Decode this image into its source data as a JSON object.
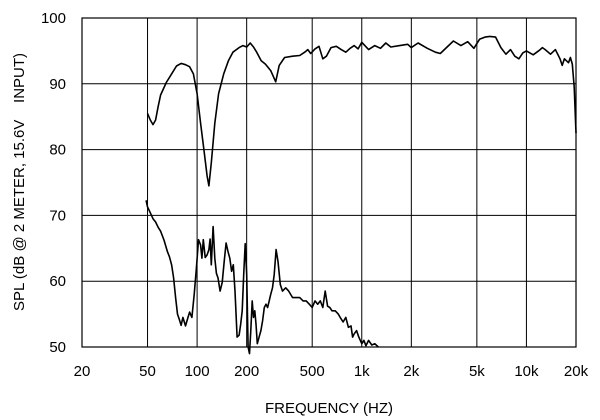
{
  "chart_data": {
    "type": "line",
    "xscale": "log",
    "xlim": [
      20,
      20000
    ],
    "ylim": [
      50,
      100
    ],
    "grid": true,
    "xlabel": "FREQUENCY (HZ)",
    "ylabel": "SPL (dB @ 2 METER, 15.6V    INPUT)",
    "x_ticks": [
      {
        "value": 20,
        "label": "20"
      },
      {
        "value": 50,
        "label": "50"
      },
      {
        "value": 100,
        "label": "100"
      },
      {
        "value": 200,
        "label": "200"
      },
      {
        "value": 500,
        "label": "500"
      },
      {
        "value": 1000,
        "label": "1k"
      },
      {
        "value": 2000,
        "label": "2k"
      },
      {
        "value": 5000,
        "label": "5k"
      },
      {
        "value": 10000,
        "label": "10k"
      },
      {
        "value": 20000,
        "label": "20k"
      }
    ],
    "x_gridlines": [
      20,
      50,
      100,
      200,
      500,
      1000,
      2000,
      5000,
      10000,
      20000
    ],
    "y_ticks": [
      {
        "value": 50,
        "label": "50"
      },
      {
        "value": 60,
        "label": "60"
      },
      {
        "value": 70,
        "label": "70"
      },
      {
        "value": 80,
        "label": "80"
      },
      {
        "value": 90,
        "label": "90"
      },
      {
        "value": 100,
        "label": "100"
      }
    ],
    "series": [
      {
        "points": [
          [
            50,
            85.5
          ],
          [
            52,
            84.5
          ],
          [
            54,
            83.8
          ],
          [
            56,
            84.5
          ],
          [
            58,
            86.5
          ],
          [
            60,
            88.3
          ],
          [
            65,
            90.2
          ],
          [
            70,
            91.5
          ],
          [
            75,
            92.7
          ],
          [
            80,
            93.1
          ],
          [
            85,
            92.9
          ],
          [
            90,
            92.6
          ],
          [
            95,
            91.5
          ],
          [
            100,
            88.5
          ],
          [
            105,
            84
          ],
          [
            110,
            80
          ],
          [
            115,
            76
          ],
          [
            118,
            74.5
          ],
          [
            122,
            78
          ],
          [
            128,
            84
          ],
          [
            135,
            88.5
          ],
          [
            145,
            91.5
          ],
          [
            155,
            93.5
          ],
          [
            165,
            94.8
          ],
          [
            180,
            95.5
          ],
          [
            190,
            95.8
          ],
          [
            200,
            95.6
          ],
          [
            210,
            96.2
          ],
          [
            220,
            95.6
          ],
          [
            230,
            94.8
          ],
          [
            245,
            93.5
          ],
          [
            260,
            93
          ],
          [
            280,
            92
          ],
          [
            300,
            90.3
          ],
          [
            315,
            92.8
          ],
          [
            340,
            94
          ],
          [
            380,
            94.2
          ],
          [
            420,
            94.3
          ],
          [
            450,
            94.8
          ],
          [
            470,
            95.2
          ],
          [
            490,
            94.6
          ],
          [
            520,
            95.3
          ],
          [
            550,
            95.7
          ],
          [
            580,
            93.8
          ],
          [
            610,
            94.2
          ],
          [
            650,
            95.5
          ],
          [
            700,
            95.7
          ],
          [
            750,
            95.2
          ],
          [
            800,
            94.8
          ],
          [
            850,
            95.4
          ],
          [
            900,
            95.8
          ],
          [
            950,
            95.3
          ],
          [
            1000,
            96.3
          ],
          [
            1100,
            95.2
          ],
          [
            1200,
            95.8
          ],
          [
            1300,
            95.4
          ],
          [
            1400,
            96.2
          ],
          [
            1500,
            95.6
          ],
          [
            1700,
            95.8
          ],
          [
            1900,
            96
          ],
          [
            2000,
            95.5
          ],
          [
            2200,
            96.2
          ],
          [
            2500,
            95.4
          ],
          [
            2800,
            94.8
          ],
          [
            3000,
            94.6
          ],
          [
            3300,
            95.6
          ],
          [
            3600,
            96.5
          ],
          [
            4000,
            95.8
          ],
          [
            4400,
            96.4
          ],
          [
            4800,
            95.4
          ],
          [
            5200,
            96.8
          ],
          [
            5600,
            97.1
          ],
          [
            6000,
            97.2
          ],
          [
            6500,
            97.1
          ],
          [
            7000,
            95.5
          ],
          [
            7500,
            94.5
          ],
          [
            8000,
            95.2
          ],
          [
            8500,
            94.2
          ],
          [
            9000,
            93.8
          ],
          [
            9500,
            94.7
          ],
          [
            10000,
            95
          ],
          [
            11000,
            94.4
          ],
          [
            12000,
            95.1
          ],
          [
            12500,
            95.5
          ],
          [
            13000,
            95.2
          ],
          [
            14000,
            94.5
          ],
          [
            15000,
            95.2
          ],
          [
            16000,
            93.8
          ],
          [
            16500,
            92.8
          ],
          [
            17000,
            93.8
          ],
          [
            18000,
            93.2
          ],
          [
            18500,
            94
          ],
          [
            19000,
            93
          ],
          [
            19500,
            89.5
          ],
          [
            20000,
            82.5
          ]
        ]
      },
      {
        "points": [
          [
            49,
            72.3
          ],
          [
            50,
            71.3
          ],
          [
            52,
            70.4
          ],
          [
            54,
            69.5
          ],
          [
            56,
            69
          ],
          [
            58,
            68.2
          ],
          [
            60,
            67.6
          ],
          [
            63,
            66.2
          ],
          [
            66,
            64.5
          ],
          [
            68,
            63.7
          ],
          [
            70,
            62.5
          ],
          [
            72,
            60.5
          ],
          [
            74,
            57.5
          ],
          [
            76,
            55
          ],
          [
            78,
            54.2
          ],
          [
            80,
            53.3
          ],
          [
            82,
            54.5
          ],
          [
            85,
            53.2
          ],
          [
            88,
            54.5
          ],
          [
            90,
            55.3
          ],
          [
            93,
            54.5
          ],
          [
            96,
            58
          ],
          [
            99,
            62
          ],
          [
            102,
            66.3
          ],
          [
            105,
            65.5
          ],
          [
            107,
            63.5
          ],
          [
            109,
            66.3
          ],
          [
            112,
            63.6
          ],
          [
            115,
            64
          ],
          [
            118,
            64.8
          ],
          [
            120,
            66.4
          ],
          [
            122,
            62.5
          ],
          [
            125,
            68.3
          ],
          [
            128,
            63.5
          ],
          [
            131,
            61.2
          ],
          [
            134,
            60.5
          ],
          [
            138,
            58.5
          ],
          [
            142,
            59.8
          ],
          [
            146,
            63
          ],
          [
            150,
            65.8
          ],
          [
            154,
            64.5
          ],
          [
            158,
            63.5
          ],
          [
            162,
            61.5
          ],
          [
            166,
            62.5
          ],
          [
            170,
            58.5
          ],
          [
            175,
            51.5
          ],
          [
            180,
            51.8
          ],
          [
            184,
            53.5
          ],
          [
            188,
            55.5
          ],
          [
            192,
            61
          ],
          [
            196,
            65.7
          ],
          [
            200,
            61
          ],
          [
            204,
            50
          ],
          [
            208,
            49
          ],
          [
            212,
            52.5
          ],
          [
            216,
            57
          ],
          [
            220,
            54.5
          ],
          [
            224,
            55.5
          ],
          [
            228,
            53.5
          ],
          [
            232,
            50.5
          ],
          [
            238,
            51.5
          ],
          [
            244,
            52.5
          ],
          [
            250,
            54
          ],
          [
            256,
            56
          ],
          [
            262,
            56.5
          ],
          [
            268,
            56
          ],
          [
            274,
            57
          ],
          [
            280,
            58
          ],
          [
            287,
            59
          ],
          [
            294,
            61
          ],
          [
            302,
            64.8
          ],
          [
            310,
            63
          ],
          [
            320,
            59.5
          ],
          [
            330,
            58.5
          ],
          [
            345,
            59
          ],
          [
            360,
            58.5
          ],
          [
            380,
            57.5
          ],
          [
            400,
            57.5
          ],
          [
            420,
            57.5
          ],
          [
            440,
            57
          ],
          [
            460,
            57
          ],
          [
            480,
            56.5
          ],
          [
            500,
            56
          ],
          [
            520,
            57
          ],
          [
            540,
            56.5
          ],
          [
            560,
            57
          ],
          [
            580,
            56
          ],
          [
            600,
            58.5
          ],
          [
            620,
            56.2
          ],
          [
            640,
            56
          ],
          [
            660,
            55.5
          ],
          [
            690,
            55.5
          ],
          [
            720,
            55
          ],
          [
            740,
            54.5
          ],
          [
            770,
            53.8
          ],
          [
            800,
            54.5
          ],
          [
            830,
            53
          ],
          [
            860,
            53.2
          ],
          [
            880,
            51.5
          ],
          [
            900,
            52
          ],
          [
            930,
            52.5
          ],
          [
            960,
            51.5
          ],
          [
            1000,
            50.5
          ],
          [
            1030,
            51
          ],
          [
            1060,
            50.2
          ],
          [
            1100,
            51
          ],
          [
            1150,
            50.3
          ],
          [
            1200,
            50.5
          ],
          [
            1260,
            50
          ]
        ]
      }
    ]
  }
}
